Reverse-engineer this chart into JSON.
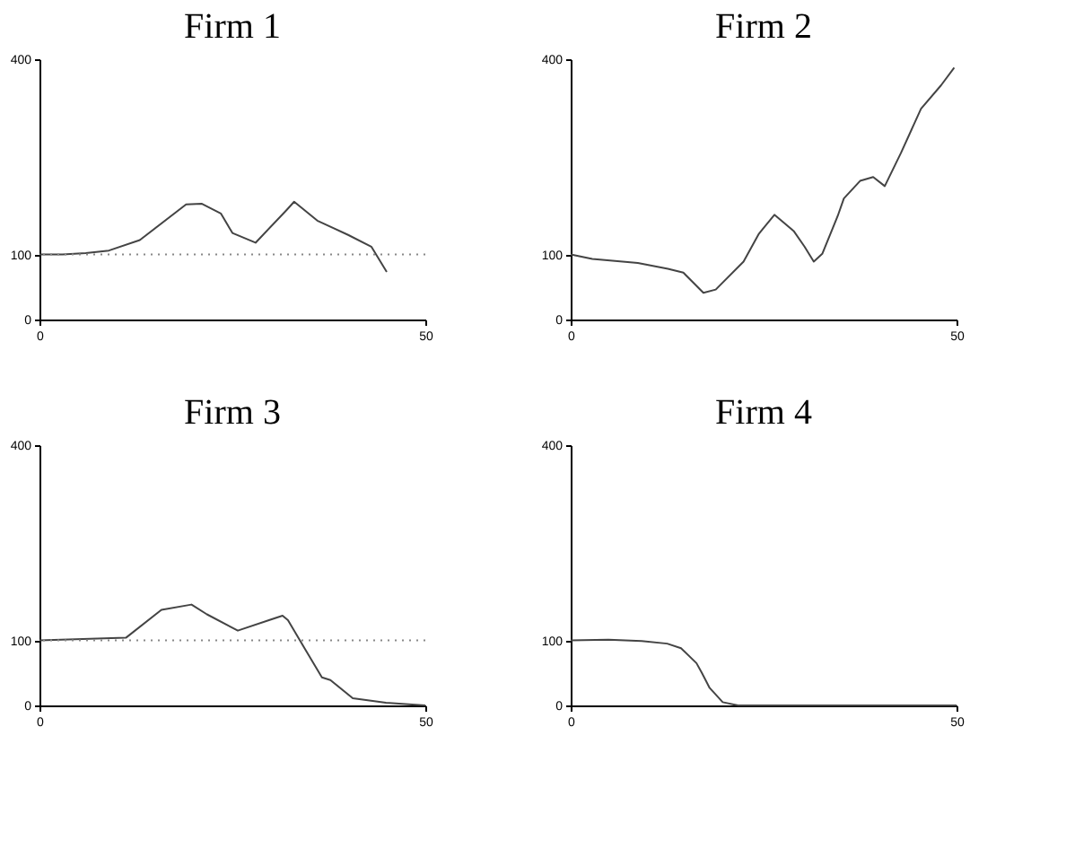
{
  "chart_data": [
    {
      "type": "line",
      "title": "Firm 1",
      "xlim": [
        0,
        50
      ],
      "xticks": [
        0,
        50
      ],
      "ylim": [
        0,
        400
      ],
      "yticks": [
        0,
        100,
        400
      ],
      "grid": false,
      "line_style": "solid",
      "ref_lines": [
        {
          "axis": "y",
          "value": 100,
          "line_style": "dotted",
          "color": "#888888"
        }
      ],
      "series": [
        {
          "color": "#444444",
          "x": [
            0,
            3,
            6,
            9,
            13,
            19,
            21,
            23.5,
            25,
            28,
            32,
            33,
            36,
            40,
            43,
            45
          ],
          "values": [
            100,
            100,
            102,
            106,
            122,
            177,
            178,
            163,
            133,
            118,
            168,
            181,
            152,
            130,
            112,
            73
          ]
        }
      ]
    },
    {
      "type": "line",
      "title": "Firm 2",
      "xlim": [
        0,
        50
      ],
      "xticks": [
        0,
        50
      ],
      "ylim": [
        0,
        400
      ],
      "yticks": [
        0,
        100,
        400
      ],
      "grid": false,
      "line_style": "solid",
      "series": [
        {
          "color": "#444444",
          "x": [
            0,
            2.8,
            8.7,
            12.6,
            14.6,
            17.2,
            18.8,
            22.4,
            24.4,
            26.4,
            28.9,
            30.3,
            31.5,
            32.6,
            34.6,
            35.4,
            37.5,
            39.2,
            40.7,
            42.8,
            45.4,
            48,
            49.7
          ],
          "values": [
            100,
            93,
            87,
            78,
            72,
            41,
            46,
            89,
            132,
            161,
            136,
            112,
            89,
            101,
            159,
            186,
            213,
            219,
            205,
            256,
            324,
            360,
            387
          ]
        }
      ]
    },
    {
      "type": "line",
      "title": "Firm 3",
      "xlim": [
        0,
        50
      ],
      "xticks": [
        0,
        50
      ],
      "ylim": [
        0,
        400
      ],
      "yticks": [
        0,
        100,
        400
      ],
      "grid": false,
      "line_style": "solid",
      "ref_lines": [
        {
          "axis": "y",
          "value": 100,
          "line_style": "dotted",
          "color": "#888888"
        }
      ],
      "series": [
        {
          "color": "#444444",
          "x": [
            0,
            11.2,
            15.8,
            19.7,
            21.7,
            25.7,
            30,
            31.5,
            32.2,
            34.4,
            36.6,
            37.7,
            40.6,
            44.9,
            50
          ],
          "values": [
            100,
            104,
            147,
            155,
            140,
            115,
            132,
            138,
            131,
            87,
            43,
            39,
            11,
            4,
            0
          ]
        }
      ]
    },
    {
      "type": "line",
      "title": "Firm 4",
      "xlim": [
        0,
        50
      ],
      "xticks": [
        0,
        50
      ],
      "ylim": [
        0,
        400
      ],
      "yticks": [
        0,
        100,
        400
      ],
      "grid": false,
      "line_style": "solid",
      "series": [
        {
          "color": "#444444",
          "x": [
            0,
            4.9,
            9.2,
            12.5,
            14.3,
            16.3,
            17,
            18,
            19.7,
            21.7,
            50
          ],
          "values": [
            100,
            101,
            99,
            95,
            88,
            65,
            50,
            27,
            5,
            0,
            0
          ]
        }
      ]
    }
  ]
}
